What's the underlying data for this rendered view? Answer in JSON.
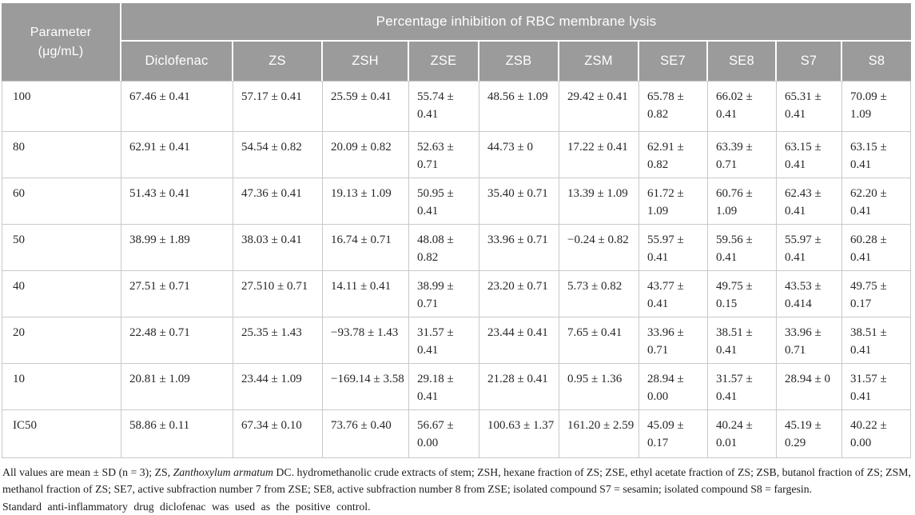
{
  "header": {
    "parameter_label": "Parameter\n(μg/mL)",
    "title": "Percentage inhibition of RBC membrane lysis",
    "columns": [
      "Diclofenac",
      "ZS",
      "ZSH",
      "ZSE",
      "ZSB",
      "ZSM",
      "SE7",
      "SE8",
      "S7",
      "S8"
    ]
  },
  "table": {
    "rows": [
      {
        "parameter": "100",
        "values": [
          "67.46 ± 0.41",
          "57.17 ± 0.41",
          "25.59 ± 0.41",
          "55.74 ± 0.41",
          "48.56 ± 1.09",
          "29.42 ± 0.41",
          "65.78 ± 0.82",
          "66.02 ± 0.41",
          "65.31 ± 0.41",
          "70.09 ± 1.09"
        ]
      },
      {
        "parameter": "80",
        "values": [
          "62.91 ± 0.41",
          "54.54 ± 0.82",
          "20.09 ± 0.82",
          "52.63 ± 0.71",
          "44.73 ± 0",
          "17.22 ± 0.41",
          "62.91 ± 0.82",
          "63.39 ± 0.71",
          "63.15 ± 0.41",
          "63.15 ± 0.41"
        ]
      },
      {
        "parameter": "60",
        "values": [
          "51.43 ± 0.41",
          "47.36 ± 0.41",
          "19.13 ± 1.09",
          "50.95 ± 0.41",
          "35.40 ± 0.71",
          "13.39 ± 1.09",
          "61.72 ± 1.09",
          "60.76 ± 1.09",
          "62.43 ± 0.41",
          "62.20 ± 0.41"
        ]
      },
      {
        "parameter": "50",
        "values": [
          "38.99 ± 1.89",
          "38.03 ± 0.41",
          "16.74 ± 0.71",
          "48.08 ± 0.82",
          "33.96 ± 0.71",
          "−0.24 ± 0.82",
          "55.97 ± 0.41",
          "59.56 ± 0.41",
          "55.97 ± 0.41",
          "60.28 ± 0.41"
        ]
      },
      {
        "parameter": "40",
        "values": [
          "27.51 ± 0.71",
          "27.510 ± 0.71",
          "14.11 ± 0.41",
          "38.99 ± 0.71",
          "23.20 ± 0.71",
          "5.73 ± 0.82",
          "43.77 ± 0.41",
          "49.75 ± 0.15",
          "43.53 ± 0.414",
          "49.75 ± 0.17"
        ]
      },
      {
        "parameter": "20",
        "values": [
          "22.48 ± 0.71",
          "25.35 ± 1.43",
          "−93.78 ± 1.43",
          "31.57 ± 0.41",
          "23.44 ± 0.41",
          "7.65 ± 0.41",
          "33.96 ± 0.71",
          "38.51 ± 0.41",
          "33.96 ± 0.71",
          "38.51 ± 0.41"
        ]
      },
      {
        "parameter": "10",
        "values": [
          "20.81 ± 1.09",
          "23.44 ± 1.09",
          "−169.14 ± 3.58",
          "29.18 ± 0.41",
          "21.28 ± 0.41",
          "0.95 ± 1.36",
          "28.94 ± 0.00",
          "31.57 ± 0.41",
          "28.94 ± 0",
          "31.57 ± 0.41"
        ]
      },
      {
        "parameter": "IC50",
        "values": [
          "58.86 ± 0.11",
          "67.34 ± 0.10",
          "73.76 ± 0.40",
          "56.67 ± 0.00",
          "100.63 ± 1.37",
          "161.20 ± 2.59",
          "45.09 ± 0.17",
          "40.24 ± 0.01",
          "45.19 ± 0.29",
          "40.22 ± 0.00"
        ]
      }
    ]
  },
  "footnotes": {
    "line1_prefix": "All values are mean ± SD (n = 3); ZS, ",
    "line1_italic": "Zanthoxylum armatum",
    "line1_rest": " DC. hydromethanolic crude extracts of stem; ZSH, hexane fraction of ZS; ZSE, ethyl acetate fraction of ZS; ZSB, butanol fraction of ZS; ZSM, methanol fraction of ZS; SE7, active subfraction number 7 from ZSE; SE8, active subfraction number 8 from ZSE; isolated compound S7 = sesamin; isolated compound S8 = fargesin.",
    "line2": "Standard anti-inflammatory drug diclofenac was used as the positive control."
  },
  "colors": {
    "header_bg": "#9b9b9b",
    "header_text": "#ffffff",
    "grid_border": "#c9c9c9"
  }
}
